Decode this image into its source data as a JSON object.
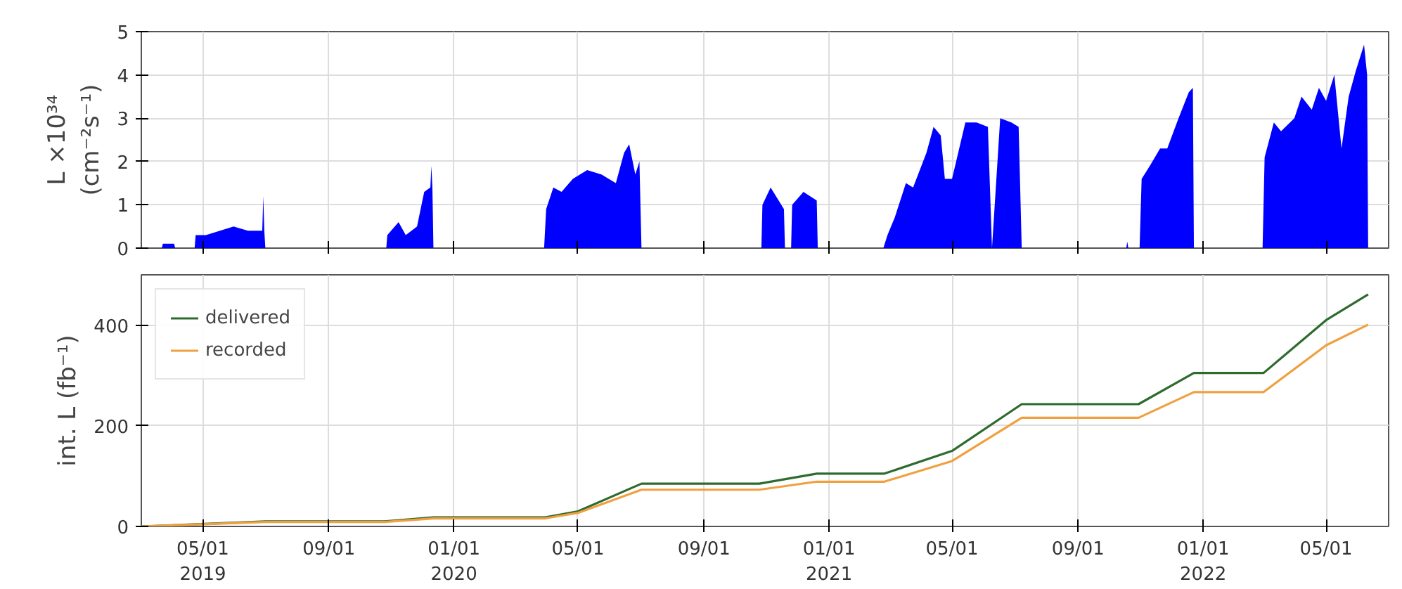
{
  "chart_data": [
    {
      "type": "area",
      "ylabel": "L ×10³⁴\n(cm⁻²s⁻¹)",
      "xlim": [
        "2019-03-02",
        "2022-07-01"
      ],
      "ylim": [
        0,
        5
      ],
      "yticks": [
        0,
        1,
        2,
        3,
        4,
        5
      ],
      "grid": true,
      "tick_labels": "y",
      "xticks": [
        {
          "value": "2019-05-01",
          "label": null
        },
        {
          "value": "2019-09-01",
          "label": null
        },
        {
          "value": "2020-01-01",
          "label": null
        },
        {
          "value": "2020-05-01",
          "label": null
        },
        {
          "value": "2020-09-01",
          "label": null
        },
        {
          "value": "2021-01-01",
          "label": null
        },
        {
          "value": "2021-05-01",
          "label": null
        },
        {
          "value": "2021-09-01",
          "label": null
        },
        {
          "value": "2022-01-01",
          "label": null
        },
        {
          "value": "2022-05-01",
          "label": null
        }
      ],
      "series": [
        {
          "color": "#0000ff",
          "x": [
            "2019-03-22",
            "2019-03-23",
            "2019-03-28",
            "2019-04-03",
            "2019-04-04",
            "2019-04-23",
            "2019-04-24",
            "2019-05-04",
            "2019-05-31",
            "2019-06-14",
            "2019-06-28",
            "2019-06-29",
            "2019-06-30",
            "2019-07-01",
            "2019-10-27",
            "2019-10-28",
            "2019-11-08",
            "2019-11-15",
            "2019-11-26",
            "2019-12-03",
            "2019-12-09",
            "2019-12-10",
            "2019-12-11",
            "2019-12-12",
            "2020-03-29",
            "2020-03-31",
            "2020-04-07",
            "2020-04-15",
            "2020-04-26",
            "2020-05-10",
            "2020-05-24",
            "2020-06-07",
            "2020-06-15",
            "2020-06-20",
            "2020-06-26",
            "2020-06-30",
            "2020-07-02",
            "2020-10-27",
            "2020-10-28",
            "2020-11-05",
            "2020-11-18",
            "2020-11-19",
            "2020-11-25",
            "2020-11-26",
            "2020-12-07",
            "2020-12-20",
            "2020-12-21",
            "2021-02-23",
            "2021-02-27",
            "2021-03-06",
            "2021-03-17",
            "2021-03-24",
            "2021-04-06",
            "2021-04-13",
            "2021-04-20",
            "2021-04-24",
            "2021-05-01",
            "2021-05-14",
            "2021-05-25",
            "2021-06-05",
            "2021-06-09",
            "2021-06-17",
            "2021-06-28",
            "2021-07-05",
            "2021-07-08",
            "2021-10-18",
            "2021-10-19",
            "2021-10-20",
            "2021-10-31",
            "2021-11-02",
            "2021-11-10",
            "2021-11-20",
            "2021-11-27",
            "2021-12-08",
            "2021-12-18",
            "2021-12-22",
            "2021-12-23",
            "2022-02-28",
            "2022-03-02",
            "2022-03-11",
            "2022-03-18",
            "2022-03-31",
            "2022-04-07",
            "2022-04-17",
            "2022-04-24",
            "2022-05-01",
            "2022-05-09",
            "2022-05-16",
            "2022-05-23",
            "2022-05-30",
            "2022-06-07",
            "2022-06-10",
            "2022-06-11"
          ],
          "values": [
            0,
            0.1,
            0.1,
            0.1,
            0,
            0,
            0.3,
            0.3,
            0.5,
            0.4,
            0.4,
            1.2,
            0.4,
            0,
            0,
            0.3,
            0.6,
            0.3,
            0.5,
            1.3,
            1.4,
            1.9,
            1.4,
            0,
            0,
            0.9,
            1.4,
            1.3,
            1.6,
            1.8,
            1.7,
            1.5,
            2.2,
            2.4,
            1.7,
            2.0,
            0,
            0,
            1.0,
            1.4,
            0.9,
            0,
            0,
            1.0,
            1.3,
            1.1,
            0,
            0,
            0.3,
            0.7,
            1.5,
            1.4,
            2.2,
            2.8,
            2.6,
            1.6,
            1.6,
            2.9,
            2.9,
            2.8,
            0,
            3.0,
            2.9,
            2.8,
            0,
            0,
            0.15,
            0,
            0,
            1.6,
            1.9,
            2.3,
            2.3,
            3.0,
            3.6,
            3.7,
            0,
            0,
            2.1,
            2.9,
            2.7,
            3.0,
            3.5,
            3.2,
            3.7,
            3.4,
            4.0,
            2.3,
            3.5,
            4.1,
            4.7,
            4.0,
            0
          ]
        }
      ]
    },
    {
      "type": "line",
      "ylabel": "int. L (fb⁻¹)",
      "xlim": [
        "2019-03-02",
        "2022-07-01"
      ],
      "ylim": [
        0,
        500
      ],
      "yticks": [
        0,
        200,
        400
      ],
      "grid": true,
      "legend": "top left",
      "xticks": [
        {
          "value": "2019-05-01",
          "label": "05/01\n2019"
        },
        {
          "value": "2019-09-01",
          "label": "09/01"
        },
        {
          "value": "2020-01-01",
          "label": "01/01\n2020"
        },
        {
          "value": "2020-05-01",
          "label": "05/01"
        },
        {
          "value": "2020-09-01",
          "label": "09/01"
        },
        {
          "value": "2021-01-01",
          "label": "01/01\n2021"
        },
        {
          "value": "2021-05-01",
          "label": "05/01"
        },
        {
          "value": "2021-09-01",
          "label": "09/01"
        },
        {
          "value": "2022-01-01",
          "label": "01/01\n2022"
        },
        {
          "value": "2022-05-01",
          "label": "05/01"
        }
      ],
      "x": [
        "2019-03-02",
        "2019-07-01",
        "2019-10-25",
        "2019-12-12",
        "2020-03-30",
        "2020-05-01",
        "2020-07-02",
        "2020-10-25",
        "2020-12-20",
        "2021-02-24",
        "2021-05-01",
        "2021-07-08",
        "2021-10-30",
        "2021-12-23",
        "2022-03-01",
        "2022-05-01",
        "2022-06-11"
      ],
      "series": [
        {
          "name": "delivered",
          "color": "#2e6b2e",
          "values": [
            0,
            10,
            10,
            18,
            18,
            30,
            85,
            85,
            105,
            105,
            150,
            243,
            243,
            305,
            305,
            410,
            461
          ]
        },
        {
          "name": "recorded",
          "color": "#f0a040",
          "values": [
            0,
            9,
            9,
            16,
            16,
            27,
            73,
            73,
            89,
            89,
            130,
            216,
            216,
            267,
            267,
            360,
            401
          ]
        }
      ]
    }
  ]
}
